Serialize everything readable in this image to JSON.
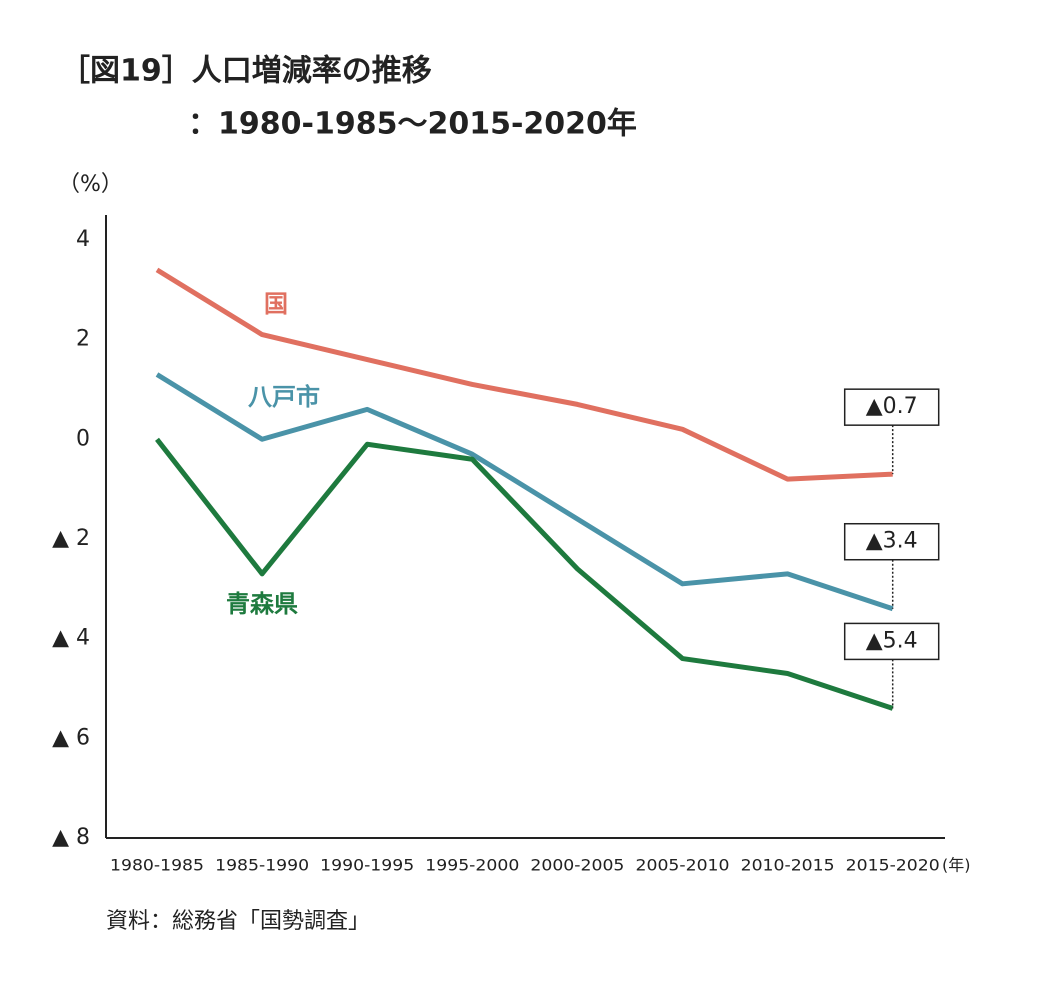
{
  "chart_data": {
    "type": "line",
    "title": "［図19］人口増減率の推移",
    "subtitle": "：1980-1985～2015-2020年",
    "y_label": "（%）",
    "x_label": "(年)",
    "source": "資料：総務省「国勢調査」",
    "categories": [
      "1980-1985",
      "1985-1990",
      "1990-1995",
      "1995-2000",
      "2000-2005",
      "2005-2010",
      "2010-2015",
      "2015-2020"
    ],
    "series": [
      {
        "name": "国",
        "color": "#e07060",
        "values": [
          3.4,
          2.1,
          1.6,
          1.1,
          0.7,
          0.2,
          -0.8,
          -0.7
        ],
        "value_labels": [
          null,
          null,
          null,
          null,
          null,
          null,
          null,
          "▲0.7"
        ]
      },
      {
        "name": "八戸市",
        "color": "#4a93a8",
        "values": [
          1.3,
          0.0,
          0.6,
          -0.3,
          -1.6,
          -2.9,
          -2.7,
          -3.4
        ],
        "value_labels": [
          null,
          null,
          null,
          null,
          null,
          null,
          null,
          "▲3.4"
        ]
      },
      {
        "name": "青森県",
        "color": "#1e7a3e",
        "values": [
          0.0,
          -2.7,
          -0.1,
          -0.4,
          -2.6,
          -4.4,
          -4.7,
          -5.4
        ],
        "value_labels": [
          null,
          null,
          null,
          null,
          null,
          null,
          null,
          "▲5.4"
        ]
      }
    ],
    "ylim": [
      -8,
      4.5
    ],
    "yticks": [
      4,
      2,
      0,
      {
        "value": -2,
        "label": "▲ 2"
      },
      {
        "value": -4,
        "label": "▲ 4"
      },
      {
        "value": -6,
        "label": "▲ 6"
      },
      {
        "value": -8,
        "label": "▲ 8"
      }
    ],
    "grid": false
  }
}
